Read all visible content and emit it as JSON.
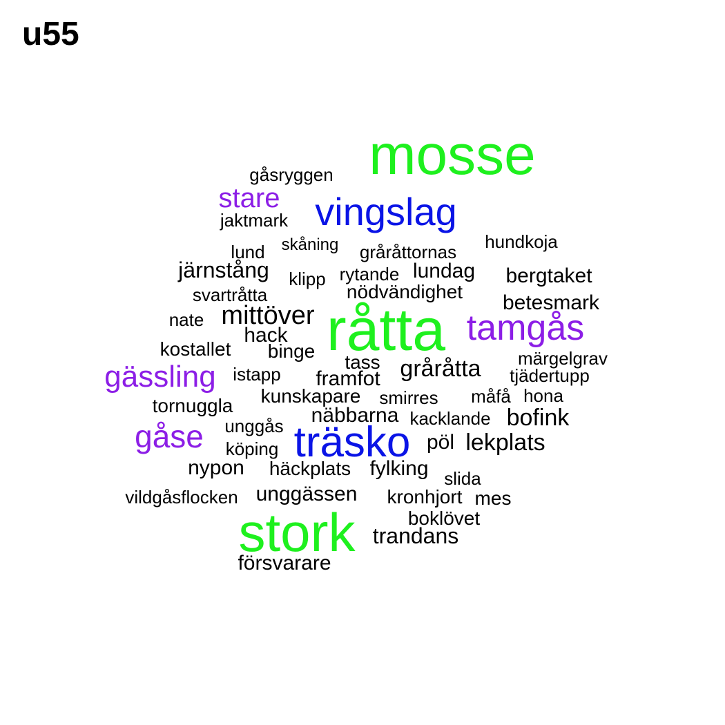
{
  "title": "u55",
  "colors": {
    "green": "#1ef01e",
    "blue": "#0a14e6",
    "purple": "#8c1ee6",
    "black": "#000000"
  },
  "words": [
    {
      "text": "mosse",
      "color": "green"
    },
    {
      "text": "gåsryggen",
      "color": "black"
    },
    {
      "text": "stare",
      "color": "purple"
    },
    {
      "text": "vingslag",
      "color": "blue"
    },
    {
      "text": "jaktmark",
      "color": "black"
    },
    {
      "text": "lund",
      "color": "black"
    },
    {
      "text": "skåning",
      "color": "black"
    },
    {
      "text": "gråråttornas",
      "color": "black"
    },
    {
      "text": "hundkoja",
      "color": "black"
    },
    {
      "text": "järnstång",
      "color": "black"
    },
    {
      "text": "klipp",
      "color": "black"
    },
    {
      "text": "rytande",
      "color": "black"
    },
    {
      "text": "lundag",
      "color": "black"
    },
    {
      "text": "bergtaket",
      "color": "black"
    },
    {
      "text": "svartråtta",
      "color": "black"
    },
    {
      "text": "nödvändighet",
      "color": "black"
    },
    {
      "text": "betesmark",
      "color": "black"
    },
    {
      "text": "nate",
      "color": "black"
    },
    {
      "text": "mittöver",
      "color": "black"
    },
    {
      "text": "råtta",
      "color": "green"
    },
    {
      "text": "tamgås",
      "color": "purple"
    },
    {
      "text": "hack",
      "color": "black"
    },
    {
      "text": "kostallet",
      "color": "black"
    },
    {
      "text": "binge",
      "color": "black"
    },
    {
      "text": "tass",
      "color": "black"
    },
    {
      "text": "märgelgrav",
      "color": "black"
    },
    {
      "text": "gässling",
      "color": "purple"
    },
    {
      "text": "istapp",
      "color": "black"
    },
    {
      "text": "framfot",
      "color": "black"
    },
    {
      "text": "gråråtta",
      "color": "black"
    },
    {
      "text": "tjädertupp",
      "color": "black"
    },
    {
      "text": "kunskapare",
      "color": "black"
    },
    {
      "text": "smirres",
      "color": "black"
    },
    {
      "text": "måfå",
      "color": "black"
    },
    {
      "text": "hona",
      "color": "black"
    },
    {
      "text": "tornuggla",
      "color": "black"
    },
    {
      "text": "näbbarna",
      "color": "black"
    },
    {
      "text": "kacklande",
      "color": "black"
    },
    {
      "text": "bofink",
      "color": "black"
    },
    {
      "text": "gåse",
      "color": "purple"
    },
    {
      "text": "unggås",
      "color": "black"
    },
    {
      "text": "träsko",
      "color": "blue"
    },
    {
      "text": "pöl",
      "color": "black"
    },
    {
      "text": "lekplats",
      "color": "black"
    },
    {
      "text": "köping",
      "color": "black"
    },
    {
      "text": "nypon",
      "color": "black"
    },
    {
      "text": "häckplats",
      "color": "black"
    },
    {
      "text": "fylking",
      "color": "black"
    },
    {
      "text": "slida",
      "color": "black"
    },
    {
      "text": "vildgåsflocken",
      "color": "black"
    },
    {
      "text": "unggässen",
      "color": "black"
    },
    {
      "text": "kronhjort",
      "color": "black"
    },
    {
      "text": "mes",
      "color": "black"
    },
    {
      "text": "boklövet",
      "color": "black"
    },
    {
      "text": "stork",
      "color": "green"
    },
    {
      "text": "trandans",
      "color": "black"
    },
    {
      "text": "försvarare",
      "color": "black"
    }
  ]
}
